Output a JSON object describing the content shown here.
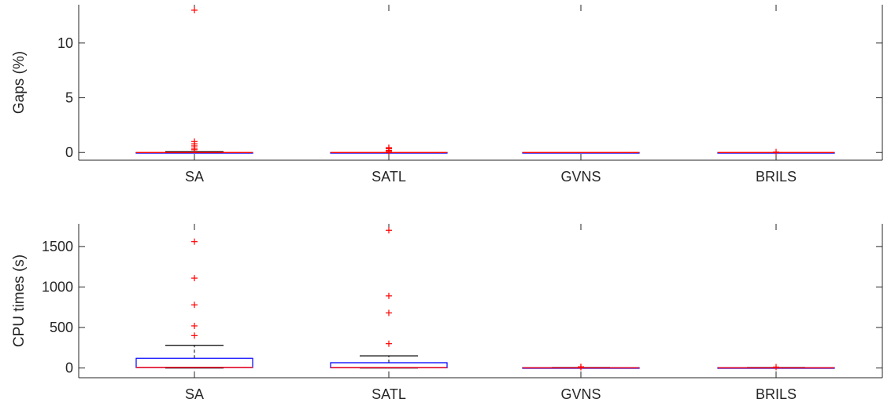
{
  "chart_data": [
    {
      "type": "box",
      "ylabel": "Gaps (%)",
      "xlabel": "",
      "ylim": [
        -0.7,
        13.5
      ],
      "yticks": [
        0,
        5,
        10
      ],
      "categories": [
        "SA",
        "SATL",
        "GVNS",
        "BRILS"
      ],
      "boxes": [
        {
          "name": "SA",
          "q1": 0,
          "median": 0,
          "q3": 0,
          "whisker_low": 0,
          "whisker_high": 0.08,
          "outliers": [
            13.0,
            1.0,
            0.8,
            0.6,
            0.4,
            0.25
          ]
        },
        {
          "name": "SATL",
          "q1": 0,
          "median": 0,
          "q3": 0,
          "whisker_low": 0,
          "whisker_high": 0,
          "outliers": [
            0.45,
            0.35,
            0.2,
            0.1
          ]
        },
        {
          "name": "GVNS",
          "q1": 0,
          "median": 0,
          "q3": 0,
          "whisker_low": 0,
          "whisker_high": 0,
          "outliers": []
        },
        {
          "name": "BRILS",
          "q1": 0,
          "median": 0,
          "q3": 0,
          "whisker_low": 0,
          "whisker_high": 0,
          "outliers": [
            0.05
          ]
        }
      ]
    },
    {
      "type": "box",
      "ylabel": "CPU times (s)",
      "xlabel": "",
      "ylim": [
        -120,
        1780
      ],
      "yticks": [
        0,
        500,
        1000,
        1500
      ],
      "categories": [
        "SA",
        "SATL",
        "GVNS",
        "BRILS"
      ],
      "boxes": [
        {
          "name": "SA",
          "q1": 5,
          "median": 8,
          "q3": 120,
          "whisker_low": 0,
          "whisker_high": 280,
          "outliers": [
            1560,
            1110,
            780,
            520,
            400
          ]
        },
        {
          "name": "SATL",
          "q1": 3,
          "median": 5,
          "q3": 65,
          "whisker_low": 0,
          "whisker_high": 150,
          "outliers": [
            1700,
            890,
            680,
            300
          ]
        },
        {
          "name": "GVNS",
          "q1": 1,
          "median": 2,
          "q3": 4,
          "whisker_low": 0,
          "whisker_high": 6,
          "outliers": [
            10,
            15
          ]
        },
        {
          "name": "BRILS",
          "q1": 1,
          "median": 2,
          "q3": 4,
          "whisker_low": 0,
          "whisker_high": 6,
          "outliers": [
            12
          ]
        }
      ]
    }
  ],
  "colors": {
    "box": "#0000ff",
    "median": "#ff0000",
    "whisker": "#000000",
    "outlier": "#ff0000",
    "axis": "#262626"
  },
  "grid": false
}
